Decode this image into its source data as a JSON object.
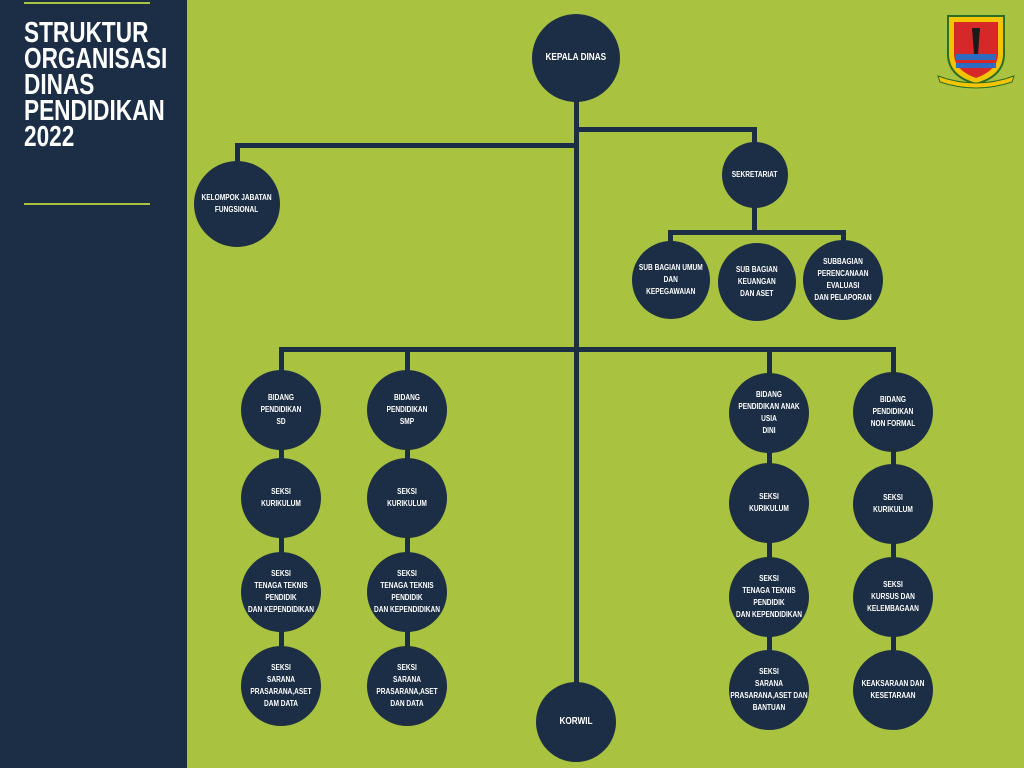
{
  "sidebar": {
    "title": "STRUKTUR\nORGANISASI\nDINAS\nPENDIDIKAN\n2022"
  },
  "colors": {
    "background": "#a9c23f",
    "node": "#1b2e45",
    "text": "#ffffff"
  },
  "logo": {
    "icon": "regency-emblem-icon"
  },
  "nodes": {
    "kepala": "KEPALA DINAS",
    "kelompok": "KELOMPOK JABATAN\nFUNGSIONAL",
    "sekretariat": "SEKRETARIAT",
    "sub_umum": "SUB BAGIAN UMUM DAN\nKEPEGAWAIAN",
    "sub_keuangan": "SUB BAGIAN KEUANGAN\nDAN ASET",
    "sub_perencanaan": "SUBBAGIAN\nPERENCANAAN EVALUASI\nDAN PELAPORAN",
    "sd": [
      "BIDANG\nPENDIDIKAN\nSD",
      "SEKSI\nKURIKULUM",
      "SEKSI\nTENAGA TEKNIS PENDIDIK\nDAN KEPENDIDIKAN",
      "SEKSI\nSARANA PRASARANA,ASET\nDAM DATA"
    ],
    "smp": [
      "BIDANG\nPENDIDIKAN\nSMP",
      "SEKSI\nKURIKULUM",
      "SEKSI\nTENAGA TEKNIS PENDIDIK\nDAN KEPENDIDIKAN",
      "SEKSI\nSARANA PRASARANA,ASET\nDAN DATA"
    ],
    "paud": [
      "BIDANG\nPENDIDIKAN ANAK USIA\nDINI",
      "SEKSI\nKURIKULUM",
      "SEKSI\nTENAGA TEKNIS PENDIDIK\nDAN KEPENDIDIKAN",
      "SEKSI\nSARANA\nPRASARANA,ASET DAN\nBANTUAN"
    ],
    "nonformal": [
      "BIDANG\nPENDIDIKAN\nNON FORMAL",
      "SEKSI\nKURIKULUM",
      "SEKSI\nKURSUS DAN\nKELEMBAGAAN",
      "KEAKSARAAN DAN\nKESETARAAN"
    ],
    "korwil": "KORWIL"
  }
}
